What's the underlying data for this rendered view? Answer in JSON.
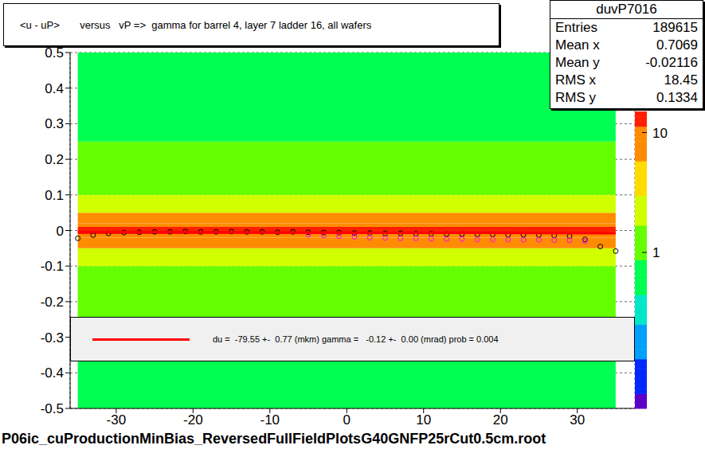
{
  "chart_data": {
    "type": "scatter",
    "title": "<u - uP>       versus   vP =>  gamma for barrel 4, layer 7 ladder 16, all wafers",
    "footer": "P06ic_cuProductionMinBias_ReversedFullFieldPlotsG40GNFP25rCut0.5cm.root",
    "xlim": [
      -36,
      37.5
    ],
    "xticks": [
      -30,
      -20,
      -10,
      0,
      10,
      20,
      30
    ],
    "ylim": [
      -0.5,
      0.5
    ],
    "yticks": [
      -0.5,
      -0.4,
      -0.3,
      -0.2,
      -0.1,
      0,
      0.1,
      0.2,
      0.3,
      0.4,
      0.5
    ],
    "grid": true,
    "series": [
      {
        "color": "#000000",
        "marker": "circle",
        "x": [
          -35,
          -33,
          -31,
          -29,
          -27,
          -25,
          -23,
          -21,
          -19,
          -17,
          -15,
          -13,
          -11,
          -9,
          -7,
          -5,
          -3,
          -1,
          1,
          3,
          5,
          7,
          9,
          11,
          13,
          15,
          17,
          19,
          21,
          23,
          25,
          27,
          29,
          31,
          33,
          35
        ],
        "values": [
          -0.022,
          -0.013,
          -0.008,
          -0.006,
          -0.005,
          -0.004,
          -0.004,
          -0.003,
          -0.004,
          -0.004,
          -0.003,
          -0.004,
          -0.004,
          -0.005,
          -0.004,
          -0.005,
          -0.006,
          -0.006,
          -0.007,
          -0.007,
          -0.008,
          -0.008,
          -0.009,
          -0.009,
          -0.01,
          -0.01,
          -0.011,
          -0.011,
          -0.012,
          -0.012,
          -0.013,
          -0.014,
          -0.016,
          -0.025,
          -0.045,
          -0.058
        ]
      },
      {
        "color": "#ff00ff",
        "marker": "circle",
        "x": [
          -5,
          -3,
          -1,
          1,
          3,
          5,
          7,
          9,
          11,
          13,
          15,
          17,
          19,
          21,
          23,
          25,
          27,
          29,
          31
        ],
        "values": [
          -0.012,
          -0.014,
          -0.016,
          -0.018,
          -0.02,
          -0.021,
          -0.022,
          -0.022,
          -0.023,
          -0.024,
          -0.024,
          -0.025,
          -0.025,
          -0.025,
          -0.026,
          -0.026,
          -0.027,
          -0.028,
          -0.03
        ]
      }
    ],
    "fit": {
      "x": [
        -35,
        35
      ],
      "values": [
        -0.004,
        -0.008
      ],
      "color": "#ff0000",
      "label": "du =  -79.55 +-  0.77 (mkm) gamma =   -0.12 +-  0.00 (mrad) prob = 0.004"
    },
    "stats": {
      "name": "duvP7016",
      "rows": [
        [
          "Entries",
          189615
        ],
        [
          "Mean x",
          0.7069
        ],
        [
          "Mean y",
          -0.02116
        ],
        [
          "RMS x",
          18.45
        ],
        [
          "RMS y",
          0.1334
        ]
      ]
    },
    "heatmap": {
      "x_range": [
        -35,
        35
      ],
      "y_bins": [
        -0.5,
        -0.25,
        -0.1,
        -0.05,
        -0.02,
        -0.01,
        0.01,
        0.02,
        0.05,
        0.1,
        0.25,
        0.5
      ],
      "counts": [
        0.8,
        1.5,
        3,
        6,
        10,
        16,
        10,
        6,
        3,
        1.5,
        0.8
      ]
    },
    "colorbar": {
      "range": [
        0.05,
        15
      ],
      "ticks": [
        10,
        1
      ]
    }
  }
}
